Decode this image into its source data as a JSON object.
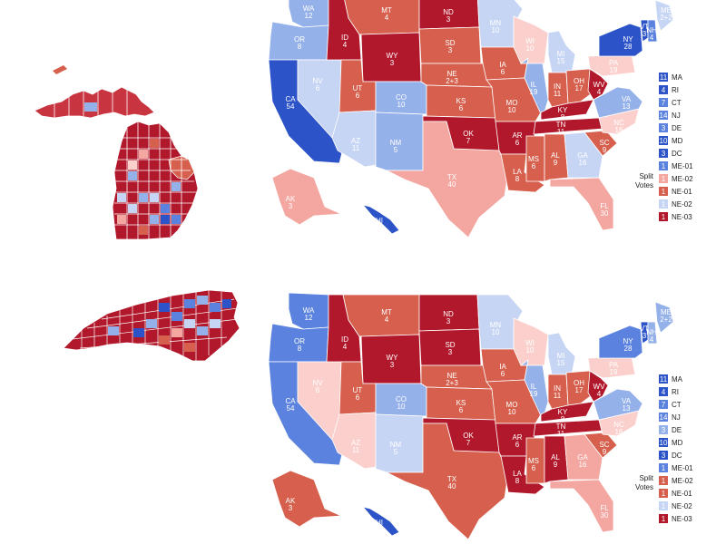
{
  "colors": {
    "solid_r": "#b2182b",
    "likely_r": "#d6604d",
    "lean_r": "#f4a6a0",
    "tilt_r": "#fbd0cc",
    "solid_d": "#2c54c8",
    "likely_d": "#5b82de",
    "lean_d": "#95b1ea",
    "tilt_d": "#c6d5f4"
  },
  "maps": [
    {
      "name": "top",
      "states": [
        {
          "abbr": "WA",
          "ev": "12",
          "rating": "lean_d"
        },
        {
          "abbr": "OR",
          "ev": "8",
          "rating": "lean_d"
        },
        {
          "abbr": "CA",
          "ev": "54",
          "rating": "solid_d"
        },
        {
          "abbr": "NV",
          "ev": "6",
          "rating": "tilt_d"
        },
        {
          "abbr": "ID",
          "ev": "4",
          "rating": "solid_r"
        },
        {
          "abbr": "MT",
          "ev": "4",
          "rating": "likely_r"
        },
        {
          "abbr": "WY",
          "ev": "3",
          "rating": "solid_r"
        },
        {
          "abbr": "UT",
          "ev": "6",
          "rating": "likely_r"
        },
        {
          "abbr": "AZ",
          "ev": "11",
          "rating": "tilt_d"
        },
        {
          "abbr": "CO",
          "ev": "10",
          "rating": "lean_d"
        },
        {
          "abbr": "NM",
          "ev": "5",
          "rating": "lean_d"
        },
        {
          "abbr": "ND",
          "ev": "3",
          "rating": "solid_r"
        },
        {
          "abbr": "SD",
          "ev": "3",
          "rating": "likely_r"
        },
        {
          "abbr": "NE",
          "ev": "2+3",
          "rating": "likely_r"
        },
        {
          "abbr": "KS",
          "ev": "6",
          "rating": "likely_r"
        },
        {
          "abbr": "OK",
          "ev": "7",
          "rating": "solid_r"
        },
        {
          "abbr": "TX",
          "ev": "40",
          "rating": "lean_r"
        },
        {
          "abbr": "MN",
          "ev": "10",
          "rating": "tilt_d"
        },
        {
          "abbr": "IA",
          "ev": "6",
          "rating": "likely_r"
        },
        {
          "abbr": "MO",
          "ev": "10",
          "rating": "likely_r"
        },
        {
          "abbr": "AR",
          "ev": "6",
          "rating": "solid_r"
        },
        {
          "abbr": "LA",
          "ev": "8",
          "rating": "likely_r"
        },
        {
          "abbr": "WI",
          "ev": "10",
          "rating": "tilt_r"
        },
        {
          "abbr": "IL",
          "ev": "19",
          "rating": "lean_d"
        },
        {
          "abbr": "MI",
          "ev": "15",
          "rating": "tilt_d"
        },
        {
          "abbr": "IN",
          "ev": "11",
          "rating": "likely_r"
        },
        {
          "abbr": "OH",
          "ev": "17",
          "rating": "likely_r"
        },
        {
          "abbr": "KY",
          "ev": "8",
          "rating": "solid_r"
        },
        {
          "abbr": "TN",
          "ev": "11",
          "rating": "solid_r"
        },
        {
          "abbr": "MS",
          "ev": "6",
          "rating": "likely_r"
        },
        {
          "abbr": "AL",
          "ev": "9",
          "rating": "likely_r"
        },
        {
          "abbr": "GA",
          "ev": "16",
          "rating": "tilt_d"
        },
        {
          "abbr": "FL",
          "ev": "30",
          "rating": "lean_r"
        },
        {
          "abbr": "SC",
          "ev": "9",
          "rating": "likely_r"
        },
        {
          "abbr": "NC",
          "ev": "16",
          "rating": "tilt_r"
        },
        {
          "abbr": "VA",
          "ev": "13",
          "rating": "lean_d"
        },
        {
          "abbr": "WV",
          "ev": "4",
          "rating": "solid_r"
        },
        {
          "abbr": "PA",
          "ev": "19",
          "rating": "tilt_r"
        },
        {
          "abbr": "NY",
          "ev": "28",
          "rating": "solid_d"
        },
        {
          "abbr": "VT",
          "ev": "3",
          "rating": "solid_d"
        },
        {
          "abbr": "NH",
          "ev": "4",
          "rating": "likely_d"
        },
        {
          "abbr": "ME",
          "ev": "2+2",
          "rating": "tilt_d"
        },
        {
          "abbr": "AK",
          "ev": "3",
          "rating": "lean_r"
        },
        {
          "abbr": "HI",
          "ev": "4",
          "rating": "solid_d"
        }
      ],
      "small_states": [
        {
          "ev": "11",
          "abbr": "MA",
          "rating": "solid_d"
        },
        {
          "ev": "4",
          "abbr": "RI",
          "rating": "solid_d"
        },
        {
          "ev": "7",
          "abbr": "CT",
          "rating": "likely_d"
        },
        {
          "ev": "14",
          "abbr": "NJ",
          "rating": "likely_d"
        },
        {
          "ev": "3",
          "abbr": "DE",
          "rating": "likely_d"
        },
        {
          "ev": "10",
          "abbr": "MD",
          "rating": "solid_d"
        },
        {
          "ev": "3",
          "abbr": "DC",
          "rating": "solid_d"
        }
      ],
      "split_votes": [
        {
          "ev": "1",
          "abbr": "ME-01",
          "rating": "likely_d"
        },
        {
          "ev": "1",
          "abbr": "ME-02",
          "rating": "lean_r"
        },
        {
          "ev": "1",
          "abbr": "NE-01",
          "rating": "likely_r"
        },
        {
          "ev": "1",
          "abbr": "NE-02",
          "rating": "tilt_d"
        },
        {
          "ev": "1",
          "abbr": "NE-03",
          "rating": "solid_r"
        }
      ]
    },
    {
      "name": "bottom",
      "states": [
        {
          "abbr": "WA",
          "ev": "12",
          "rating": "likely_d"
        },
        {
          "abbr": "OR",
          "ev": "8",
          "rating": "likely_d"
        },
        {
          "abbr": "CA",
          "ev": "54",
          "rating": "likely_d"
        },
        {
          "abbr": "NV",
          "ev": "6",
          "rating": "tilt_r"
        },
        {
          "abbr": "ID",
          "ev": "4",
          "rating": "solid_r"
        },
        {
          "abbr": "MT",
          "ev": "4",
          "rating": "likely_r"
        },
        {
          "abbr": "WY",
          "ev": "3",
          "rating": "solid_r"
        },
        {
          "abbr": "UT",
          "ev": "6",
          "rating": "likely_r"
        },
        {
          "abbr": "AZ",
          "ev": "11",
          "rating": "tilt_r"
        },
        {
          "abbr": "CO",
          "ev": "10",
          "rating": "lean_d"
        },
        {
          "abbr": "NM",
          "ev": "5",
          "rating": "tilt_d"
        },
        {
          "abbr": "ND",
          "ev": "3",
          "rating": "solid_r"
        },
        {
          "abbr": "SD",
          "ev": "3",
          "rating": "solid_r"
        },
        {
          "abbr": "NE",
          "ev": "2+3",
          "rating": "likely_r"
        },
        {
          "abbr": "KS",
          "ev": "6",
          "rating": "likely_r"
        },
        {
          "abbr": "OK",
          "ev": "7",
          "rating": "solid_r"
        },
        {
          "abbr": "TX",
          "ev": "40",
          "rating": "likely_r"
        },
        {
          "abbr": "MN",
          "ev": "10",
          "rating": "tilt_d"
        },
        {
          "abbr": "IA",
          "ev": "6",
          "rating": "likely_r"
        },
        {
          "abbr": "MO",
          "ev": "10",
          "rating": "likely_r"
        },
        {
          "abbr": "AR",
          "ev": "6",
          "rating": "solid_r"
        },
        {
          "abbr": "LA",
          "ev": "8",
          "rating": "solid_r"
        },
        {
          "abbr": "WI",
          "ev": "10",
          "rating": "tilt_r"
        },
        {
          "abbr": "IL",
          "ev": "19",
          "rating": "lean_d"
        },
        {
          "abbr": "MI",
          "ev": "15",
          "rating": "tilt_d"
        },
        {
          "abbr": "IN",
          "ev": "11",
          "rating": "likely_r"
        },
        {
          "abbr": "OH",
          "ev": "17",
          "rating": "likely_r"
        },
        {
          "abbr": "KY",
          "ev": "8",
          "rating": "solid_r"
        },
        {
          "abbr": "TN",
          "ev": "11",
          "rating": "solid_r"
        },
        {
          "abbr": "MS",
          "ev": "6",
          "rating": "likely_r"
        },
        {
          "abbr": "AL",
          "ev": "9",
          "rating": "solid_r"
        },
        {
          "abbr": "GA",
          "ev": "16",
          "rating": "lean_r"
        },
        {
          "abbr": "FL",
          "ev": "30",
          "rating": "lean_r"
        },
        {
          "abbr": "SC",
          "ev": "9",
          "rating": "likely_r"
        },
        {
          "abbr": "NC",
          "ev": "16",
          "rating": "tilt_r"
        },
        {
          "abbr": "VA",
          "ev": "13",
          "rating": "lean_d"
        },
        {
          "abbr": "WV",
          "ev": "4",
          "rating": "solid_r"
        },
        {
          "abbr": "PA",
          "ev": "19",
          "rating": "tilt_r"
        },
        {
          "abbr": "NY",
          "ev": "28",
          "rating": "likely_d"
        },
        {
          "abbr": "VT",
          "ev": "3",
          "rating": "solid_d"
        },
        {
          "abbr": "NH",
          "ev": "4",
          "rating": "lean_d"
        },
        {
          "abbr": "ME",
          "ev": "2+2",
          "rating": "lean_d"
        },
        {
          "abbr": "AK",
          "ev": "3",
          "rating": "likely_r"
        },
        {
          "abbr": "HI",
          "ev": "4",
          "rating": "solid_d"
        }
      ],
      "small_states": [
        {
          "ev": "11",
          "abbr": "MA",
          "rating": "solid_d"
        },
        {
          "ev": "4",
          "abbr": "RI",
          "rating": "solid_d"
        },
        {
          "ev": "7",
          "abbr": "CT",
          "rating": "likely_d"
        },
        {
          "ev": "14",
          "abbr": "NJ",
          "rating": "likely_d"
        },
        {
          "ev": "3",
          "abbr": "DE",
          "rating": "lean_d"
        },
        {
          "ev": "10",
          "abbr": "MD",
          "rating": "solid_d"
        },
        {
          "ev": "3",
          "abbr": "DC",
          "rating": "solid_d"
        }
      ],
      "split_votes": [
        {
          "ev": "1",
          "abbr": "ME-01",
          "rating": "likely_d"
        },
        {
          "ev": "1",
          "abbr": "ME-02",
          "rating": "likely_r"
        },
        {
          "ev": "1",
          "abbr": "NE-01",
          "rating": "likely_r"
        },
        {
          "ev": "1",
          "abbr": "NE-02",
          "rating": "tilt_d"
        },
        {
          "ev": "1",
          "abbr": "NE-03",
          "rating": "solid_r"
        }
      ]
    }
  ],
  "legend_caption": [
    "Split",
    "Votes"
  ]
}
